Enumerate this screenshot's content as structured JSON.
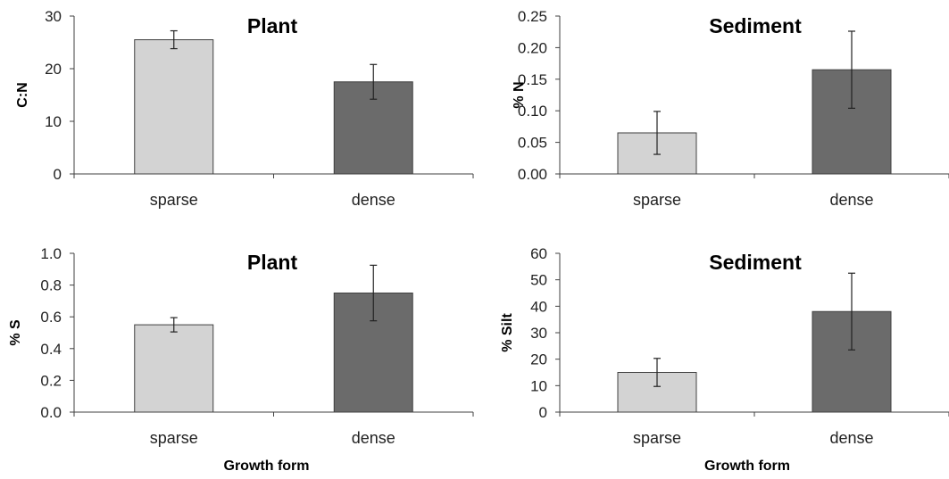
{
  "chart_data": [
    {
      "type": "bar",
      "title": "Plant",
      "xlabel": "",
      "ylabel": "C:N",
      "categories": [
        "sparse",
        "dense"
      ],
      "values": [
        25.5,
        17.5
      ],
      "errors": [
        1.7,
        3.3
      ],
      "ylim": [
        0,
        30
      ],
      "yticks": [
        "0",
        "10",
        "20",
        "30"
      ],
      "colors": [
        "#d3d3d3",
        "#6b6b6b"
      ],
      "grid": false,
      "legend": "none"
    },
    {
      "type": "bar",
      "title": "Sediment",
      "xlabel": "",
      "ylabel": "% N",
      "categories": [
        "sparse",
        "dense"
      ],
      "values": [
        0.065,
        0.165
      ],
      "errors": [
        0.034,
        0.061
      ],
      "ylim": [
        0,
        0.25
      ],
      "yticks": [
        "0.00",
        "0.05",
        "0.10",
        "0.15",
        "0.20",
        "0.25"
      ],
      "colors": [
        "#d3d3d3",
        "#6b6b6b"
      ],
      "grid": false,
      "legend": "none"
    },
    {
      "type": "bar",
      "title": "Plant",
      "xlabel": "Growth form",
      "ylabel": "% S",
      "categories": [
        "sparse",
        "dense"
      ],
      "values": [
        0.55,
        0.75
      ],
      "errors": [
        0.045,
        0.175
      ],
      "ylim": [
        0,
        1.0
      ],
      "yticks": [
        "0.0",
        "0.2",
        "0.4",
        "0.6",
        "0.8",
        "1.0"
      ],
      "colors": [
        "#d3d3d3",
        "#6b6b6b"
      ],
      "grid": false,
      "legend": "none"
    },
    {
      "type": "bar",
      "title": "Sediment",
      "xlabel": "Growth form",
      "ylabel": "% Silt",
      "categories": [
        "sparse",
        "dense"
      ],
      "values": [
        15,
        38
      ],
      "errors": [
        5.3,
        14.5
      ],
      "ylim": [
        0,
        60
      ],
      "yticks": [
        "0",
        "10",
        "20",
        "30",
        "40",
        "50",
        "60"
      ],
      "colors": [
        "#d3d3d3",
        "#6b6b6b"
      ],
      "grid": false,
      "legend": "none"
    }
  ]
}
